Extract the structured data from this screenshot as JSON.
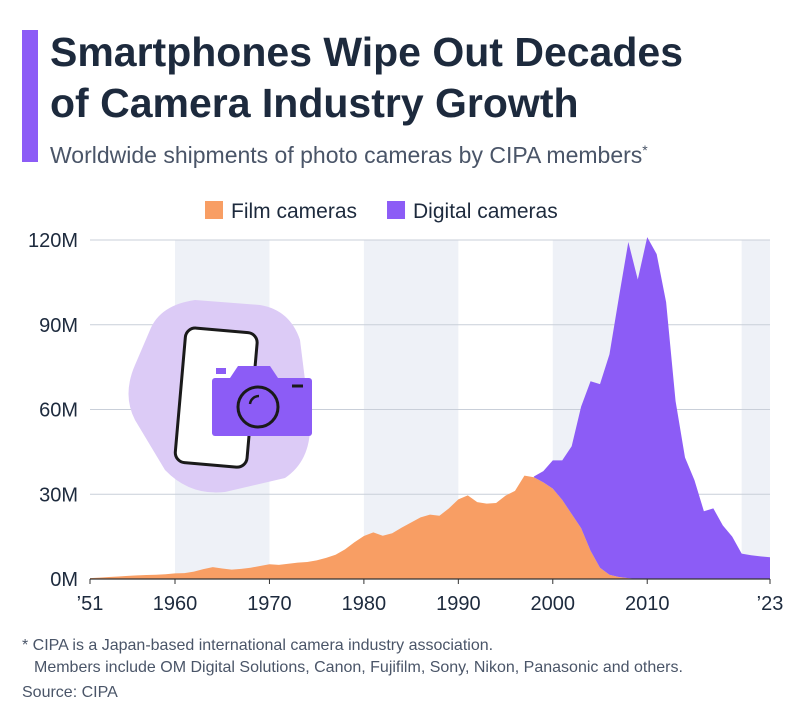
{
  "chart_data": {
    "type": "stacked_area",
    "title": [
      "Smartphones Wipe Out Decades",
      "of Camera Industry Growth"
    ],
    "subtitle": "Worldwide shipments of photo cameras by CIPA members",
    "subtitle_mark": "*",
    "footnote": [
      "* CIPA is a Japan-based international camera industry association.",
      "Members include OM Digital Solutions, Canon, Fujifilm, Sony, Nikon, Panasonic and others."
    ],
    "source": "Source: CIPA",
    "x": [
      1951,
      1952,
      1953,
      1954,
      1955,
      1956,
      1957,
      1958,
      1959,
      1960,
      1961,
      1962,
      1963,
      1964,
      1965,
      1966,
      1967,
      1968,
      1969,
      1970,
      1971,
      1972,
      1973,
      1974,
      1975,
      1976,
      1977,
      1978,
      1979,
      1980,
      1981,
      1982,
      1983,
      1984,
      1985,
      1986,
      1987,
      1988,
      1989,
      1990,
      1991,
      1992,
      1993,
      1994,
      1995,
      1996,
      1997,
      1998,
      1999,
      2000,
      2001,
      2002,
      2003,
      2004,
      2005,
      2006,
      2007,
      2008,
      2009,
      2010,
      2011,
      2012,
      2013,
      2014,
      2015,
      2016,
      2017,
      2018,
      2019,
      2020,
      2021,
      2022,
      2023
    ],
    "series": [
      {
        "name": "Film cameras",
        "color": "#f89e64",
        "values": [
          0.3,
          0.5,
          0.7,
          0.9,
          1.1,
          1.3,
          1.4,
          1.5,
          1.7,
          2.0,
          2.1,
          2.6,
          3.5,
          4.2,
          3.7,
          3.3,
          3.6,
          4.0,
          4.6,
          5.2,
          5.0,
          5.4,
          5.8,
          6.0,
          6.6,
          7.5,
          8.6,
          10.5,
          13,
          15.2,
          16.5,
          15.3,
          16.2,
          18.2,
          20,
          21.8,
          22.8,
          22.4,
          25,
          28.2,
          29.6,
          27.2,
          26.7,
          26.9,
          29.5,
          31.2,
          36.6,
          36,
          34.2,
          32,
          28,
          23,
          18,
          10,
          4,
          1.5,
          0.7,
          0.3,
          0,
          null,
          null,
          null,
          null,
          null,
          null,
          null,
          null,
          null,
          null,
          null,
          null,
          null,
          null
        ]
      },
      {
        "name": "Digital cameras",
        "color": "#8c5cf6",
        "values": [
          null,
          null,
          null,
          null,
          null,
          null,
          null,
          null,
          null,
          null,
          null,
          null,
          null,
          null,
          null,
          null,
          null,
          null,
          null,
          null,
          null,
          null,
          null,
          null,
          null,
          null,
          null,
          null,
          null,
          null,
          null,
          null,
          null,
          null,
          null,
          null,
          null,
          null,
          null,
          null,
          null,
          null,
          null,
          null,
          null,
          null,
          null,
          0.3,
          4,
          10,
          14,
          24,
          43,
          60,
          65,
          78,
          99,
          119,
          106,
          121,
          115,
          98,
          63,
          43,
          35,
          24,
          25,
          19,
          15,
          9,
          8.4,
          8,
          7.7
        ]
      }
    ],
    "xlim": [
      1951,
      2023
    ],
    "xticks": [
      {
        "value": 1951,
        "label": "’51"
      },
      1960,
      1970,
      1980,
      1990,
      2000,
      2010,
      {
        "value": 2023,
        "label": "’23"
      }
    ],
    "ylim": [
      0,
      120
    ],
    "yticks": [
      {
        "value": 0,
        "label": "0M"
      },
      {
        "value": 30,
        "label": "30M"
      },
      {
        "value": 60,
        "label": "60M"
      },
      {
        "value": 90,
        "label": "90M"
      },
      {
        "value": 120,
        "label": "120M"
      }
    ],
    "grid": true
  }
}
